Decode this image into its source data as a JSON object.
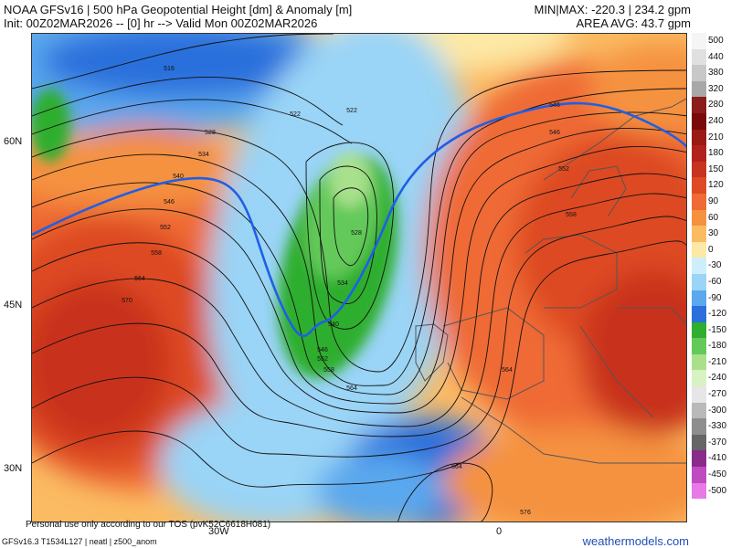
{
  "header": {
    "line1": "NOAA GFSv16 | 500 hPa Geopotential Height [dm] & Anomaly [m]",
    "line2": "Init: 00Z02MAR2026 -- [0] hr --> Valid Mon 00Z02MAR2026",
    "minmax": "MIN|MAX: -220.3 | 234.2 gpm",
    "area_avg": "AREA AVG: 43.7 gpm"
  },
  "map": {
    "lat_labels": [
      "60N",
      "45N",
      "30N"
    ],
    "lon_labels": [
      "30W",
      "0"
    ],
    "contour_labels": [
      "516",
      "522",
      "522",
      "528",
      "534",
      "540",
      "546",
      "552",
      "558",
      "564",
      "570",
      "528",
      "534",
      "540",
      "546",
      "552",
      "558",
      "564",
      "546",
      "546",
      "552",
      "558",
      "564",
      "564",
      "576"
    ],
    "contour_colors": {
      "normal": "#111111",
      "highlight": "#1f5fe6"
    }
  },
  "colorbar": {
    "labels": [
      "500",
      "440",
      "380",
      "320",
      "280",
      "240",
      "210",
      "180",
      "150",
      "120",
      "90",
      "60",
      "30",
      "0",
      "-30",
      "-60",
      "-90",
      "-120",
      "-150",
      "-180",
      "-210",
      "-240",
      "-270",
      "-300",
      "-330",
      "-370",
      "-410",
      "-450",
      "-500"
    ],
    "colors": [
      "#f5f5f5",
      "#e0e0e0",
      "#c8c8c8",
      "#a8a8a8",
      "#8a1c1c",
      "#7a0a0a",
      "#9a1a14",
      "#b2221c",
      "#c8331f",
      "#dd4a24",
      "#ef6a34",
      "#f5923f",
      "#fbbb62",
      "#fde9a6",
      "#cdeffb",
      "#9ad4f6",
      "#5aa8ee",
      "#2a6fdc",
      "#2fae2f",
      "#63c95a",
      "#a8e08c",
      "#d8f2c4",
      "#e6e6e6",
      "#b9b9b9",
      "#8e8e8e",
      "#666666",
      "#8a2a8a",
      "#c04bc0",
      "#e87ae8"
    ]
  },
  "footer": {
    "disclaimer": "Personal use only according to our TOS (pvK52C6618H081)",
    "run": "GFSv16.3 T1534L127 | neatl | z500_anom",
    "brand": "weathermodels.com"
  }
}
